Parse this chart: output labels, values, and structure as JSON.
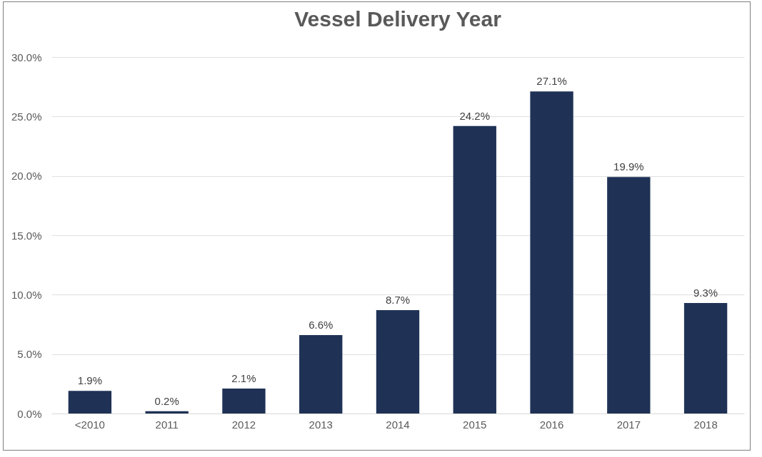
{
  "chart_data": {
    "type": "bar",
    "title": "Vessel Delivery Year",
    "categories": [
      "<2010",
      "2011",
      "2012",
      "2013",
      "2014",
      "2015",
      "2016",
      "2017",
      "2018"
    ],
    "values": [
      1.9,
      0.2,
      2.1,
      6.6,
      8.7,
      24.2,
      27.1,
      19.9,
      9.3
    ],
    "value_labels": [
      "1.9%",
      "0.2%",
      "2.1%",
      "6.6%",
      "8.7%",
      "24.2%",
      "27.1%",
      "19.9%",
      "9.3%"
    ],
    "color": "#1f3256",
    "ylim": [
      0,
      30
    ],
    "yticks": [
      {
        "value": 0,
        "label": "0.0%"
      },
      {
        "value": 5,
        "label": "5.0%"
      },
      {
        "value": 10,
        "label": "10.0%"
      },
      {
        "value": 15,
        "label": "15.0%"
      },
      {
        "value": 20,
        "label": "20.0%"
      },
      {
        "value": 25,
        "label": "25.0%"
      },
      {
        "value": 30,
        "label": "30.0%"
      }
    ],
    "grid": "y"
  }
}
